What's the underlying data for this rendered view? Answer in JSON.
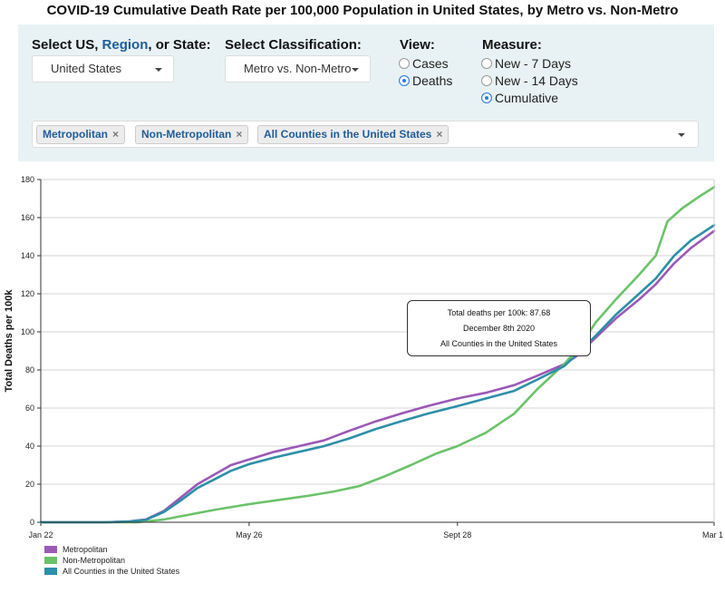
{
  "title": "COVID-19 Cumulative Death Rate per 100,000 Population in United States, by Metro vs. Non-Metro",
  "controls": {
    "location_label_prefix": "Select US, ",
    "location_label_link": "Region",
    "location_label_suffix": ", or State:",
    "location_value": "United States",
    "classification_label": "Select Classification:",
    "classification_value": "Metro vs. Non-Metro",
    "view_label": "View:",
    "view_options": [
      {
        "label": "Cases",
        "selected": false
      },
      {
        "label": "Deaths",
        "selected": true
      }
    ],
    "measure_label": "Measure:",
    "measure_options": [
      {
        "label": "New - 7 Days",
        "selected": false
      },
      {
        "label": "New - 14 Days",
        "selected": false
      },
      {
        "label": "Cumulative",
        "selected": true
      }
    ],
    "selected_series": [
      "Metropolitan",
      "Non-Metropolitan",
      "All Counties in the United States"
    ],
    "remove_icon": "×"
  },
  "tooltip": {
    "line1": "Total deaths per 100k: 87.68",
    "line2": "December 8th 2020",
    "line3": "All Counties in the United States"
  },
  "colors": {
    "metro": "#9b59b6",
    "nonmetro": "#6cc26a",
    "all": "#2d8fa8",
    "accent": "#1f5d99"
  },
  "chart_data": {
    "type": "line",
    "title": "COVID-19 Cumulative Death Rate per 100,000 Population in United States, by Metro vs. Non-Metro",
    "xlabel": "",
    "ylabel": "Total Deaths per 100k",
    "ylim": [
      0,
      180
    ],
    "yticks": [
      0,
      20,
      40,
      60,
      80,
      100,
      120,
      140,
      160,
      180
    ],
    "xlim": [
      "2020-01-22",
      "2021-03-01"
    ],
    "xticks": [
      {
        "date": "2020-01-22",
        "label": "Jan 22"
      },
      {
        "date": "2020-05-26",
        "label": "May 26"
      },
      {
        "date": "2020-09-28",
        "label": "Sept 28"
      },
      {
        "date": "2021-03-01",
        "label": "Mar 1"
      }
    ],
    "grid": true,
    "legend": "bottom-left",
    "series": [
      {
        "name": "Metropolitan",
        "color": "#9b59b6",
        "points": [
          [
            "2020-01-22",
            0
          ],
          [
            "2020-03-01",
            0
          ],
          [
            "2020-03-15",
            0.5
          ],
          [
            "2020-03-25",
            1.5
          ],
          [
            "2020-04-05",
            6
          ],
          [
            "2020-04-15",
            13
          ],
          [
            "2020-04-25",
            20
          ],
          [
            "2020-05-05",
            25
          ],
          [
            "2020-05-15",
            30
          ],
          [
            "2020-05-26",
            33
          ],
          [
            "2020-06-10",
            37
          ],
          [
            "2020-06-25",
            40
          ],
          [
            "2020-07-10",
            43
          ],
          [
            "2020-07-25",
            48
          ],
          [
            "2020-08-10",
            53
          ],
          [
            "2020-08-25",
            57
          ],
          [
            "2020-09-10",
            61
          ],
          [
            "2020-09-28",
            65
          ],
          [
            "2020-10-15",
            68
          ],
          [
            "2020-11-01",
            72
          ],
          [
            "2020-11-15",
            77
          ],
          [
            "2020-12-01",
            83
          ],
          [
            "2020-12-08",
            87
          ],
          [
            "2020-12-20",
            97
          ],
          [
            "2021-01-01",
            107
          ],
          [
            "2021-01-15",
            117
          ],
          [
            "2021-01-25",
            125
          ],
          [
            "2021-02-05",
            136
          ],
          [
            "2021-02-15",
            144
          ],
          [
            "2021-03-01",
            153
          ]
        ]
      },
      {
        "name": "Non-Metropolitan",
        "color": "#6cc26a",
        "points": [
          [
            "2020-01-22",
            0
          ],
          [
            "2020-03-20",
            0
          ],
          [
            "2020-04-05",
            1.5
          ],
          [
            "2020-04-20",
            4
          ],
          [
            "2020-05-05",
            6.5
          ],
          [
            "2020-05-26",
            9.5
          ],
          [
            "2020-06-15",
            12
          ],
          [
            "2020-07-01",
            14
          ],
          [
            "2020-07-15",
            16
          ],
          [
            "2020-07-31",
            19
          ],
          [
            "2020-08-15",
            24
          ],
          [
            "2020-08-31",
            30
          ],
          [
            "2020-09-15",
            36
          ],
          [
            "2020-09-28",
            40
          ],
          [
            "2020-10-15",
            47
          ],
          [
            "2020-11-01",
            57
          ],
          [
            "2020-11-15",
            70
          ],
          [
            "2020-12-01",
            83
          ],
          [
            "2020-12-10",
            92
          ],
          [
            "2020-12-20",
            105
          ],
          [
            "2021-01-01",
            117
          ],
          [
            "2021-01-15",
            130
          ],
          [
            "2021-01-25",
            140
          ],
          [
            "2021-02-01",
            158
          ],
          [
            "2021-02-10",
            165
          ],
          [
            "2021-02-20",
            171
          ],
          [
            "2021-03-01",
            176
          ]
        ]
      },
      {
        "name": "All Counties in the United States",
        "color": "#2d8fa8",
        "points": [
          [
            "2020-01-22",
            0
          ],
          [
            "2020-03-01",
            0
          ],
          [
            "2020-03-15",
            0.4
          ],
          [
            "2020-03-25",
            1.3
          ],
          [
            "2020-04-05",
            5.5
          ],
          [
            "2020-04-15",
            11.5
          ],
          [
            "2020-04-25",
            18
          ],
          [
            "2020-05-05",
            22.5
          ],
          [
            "2020-05-15",
            27
          ],
          [
            "2020-05-26",
            30.5
          ],
          [
            "2020-06-10",
            34
          ],
          [
            "2020-06-25",
            37
          ],
          [
            "2020-07-10",
            40
          ],
          [
            "2020-07-25",
            44
          ],
          [
            "2020-08-10",
            49
          ],
          [
            "2020-08-25",
            53
          ],
          [
            "2020-09-10",
            57
          ],
          [
            "2020-09-28",
            61
          ],
          [
            "2020-10-15",
            65
          ],
          [
            "2020-11-01",
            69
          ],
          [
            "2020-11-15",
            75
          ],
          [
            "2020-12-01",
            82
          ],
          [
            "2020-12-08",
            87.68
          ],
          [
            "2020-12-20",
            98
          ],
          [
            "2021-01-01",
            109
          ],
          [
            "2021-01-15",
            120
          ],
          [
            "2021-01-25",
            128
          ],
          [
            "2021-02-05",
            140
          ],
          [
            "2021-02-15",
            148
          ],
          [
            "2021-03-01",
            156
          ]
        ]
      }
    ]
  }
}
